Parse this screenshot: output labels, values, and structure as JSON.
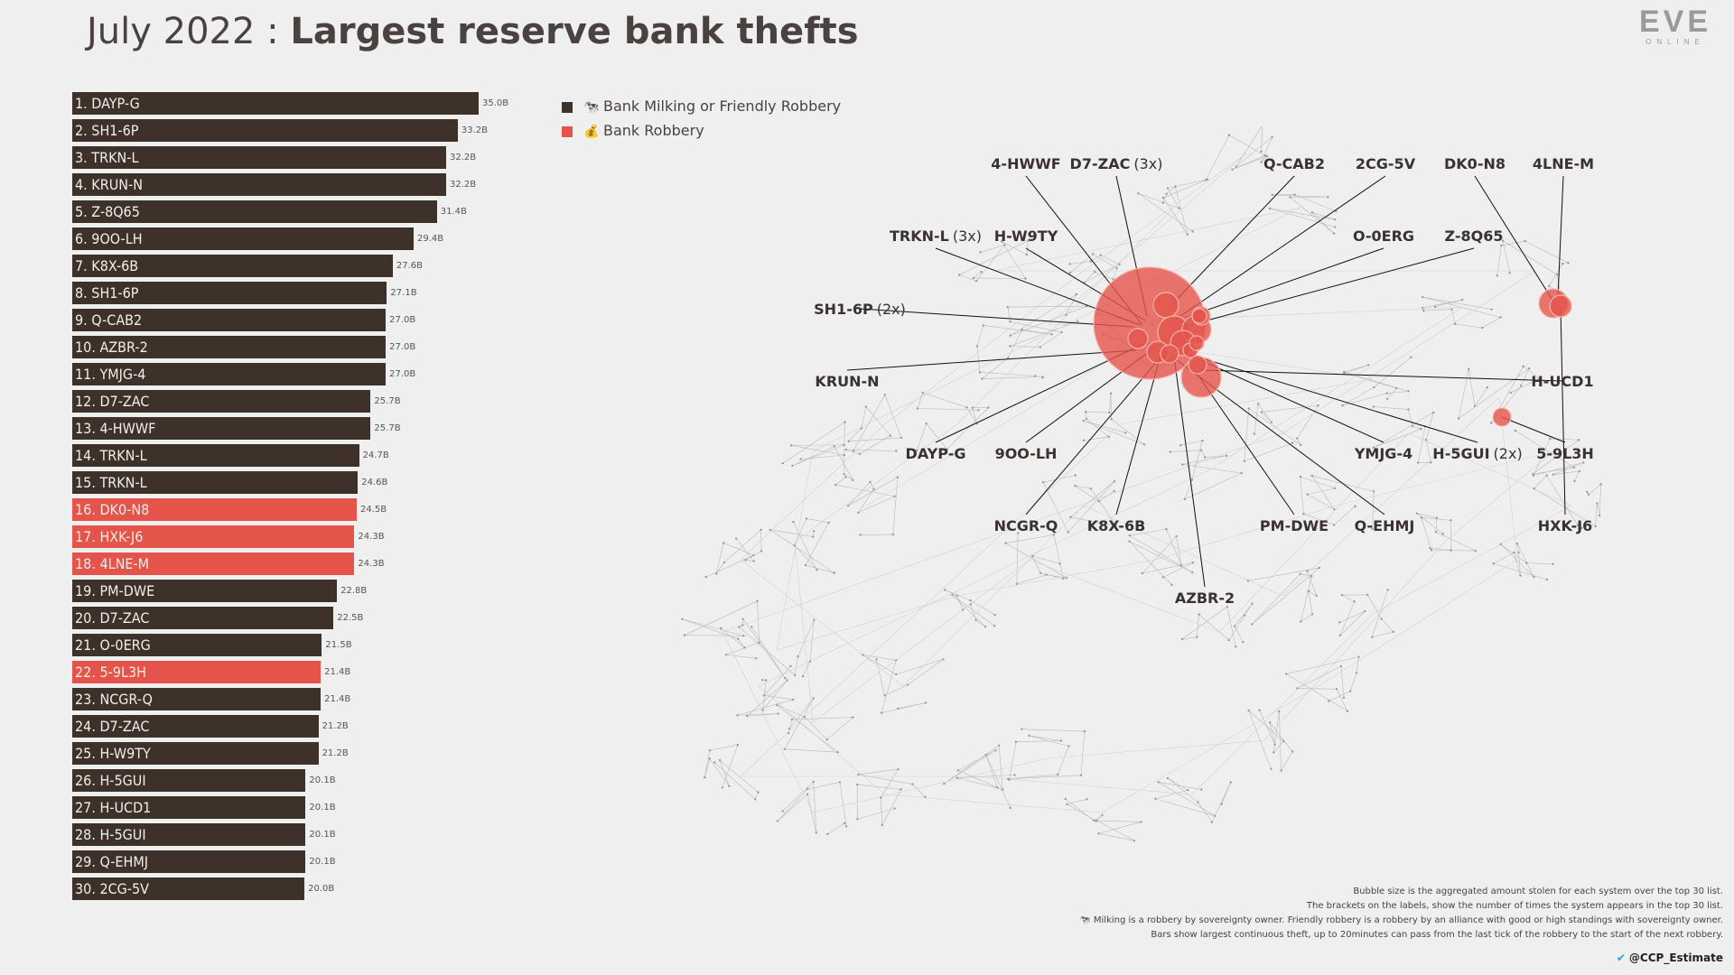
{
  "title": {
    "light": "July 2022 : ",
    "bold": "Largest reserve bank thefts"
  },
  "logo": {
    "main": "EVE",
    "sub": "ONLINE"
  },
  "legend": [
    {
      "icon": "cow-icon",
      "glyph": "🐄",
      "label": "Bank Milking or Friendly Robbery",
      "color": "#3d3129"
    },
    {
      "icon": "money-bag-icon",
      "glyph": "💰",
      "label": "Bank Robbery",
      "color": "#e5544b"
    }
  ],
  "colors": {
    "milking": "#3d3129",
    "robbery": "#e5544b",
    "bubble": "#e5544b"
  },
  "chart_data": [
    {
      "type": "bar",
      "orientation": "horizontal",
      "unit": "B",
      "categories": [
        "1. DAYP-G",
        "2. SH1-6P",
        "3. TRKN-L",
        "4. KRUN-N",
        "5. Z-8Q65",
        "6. 9OO-LH",
        "7. K8X-6B",
        "8. SH1-6P",
        "9. Q-CAB2",
        "10. AZBR-2",
        "11. YMJG-4",
        "12. D7-ZAC",
        "13. 4-HWWF",
        "14. TRKN-L",
        "15. TRKN-L",
        "16. DK0-N8",
        "17. HXK-J6",
        "18. 4LNE-M",
        "19. PM-DWE",
        "20. D7-ZAC",
        "21. O-0ERG",
        "22. 5-9L3H",
        "23. NCGR-Q",
        "24. D7-ZAC",
        "25. H-W9TY",
        "26. H-5GUI",
        "27. H-UCD1",
        "28. H-5GUI",
        "29. Q-EHMJ",
        "30. 2CG-5V"
      ],
      "values": [
        35.0,
        33.2,
        32.2,
        32.2,
        31.4,
        29.4,
        27.6,
        27.1,
        27.0,
        27.0,
        27.0,
        25.7,
        25.7,
        24.7,
        24.6,
        24.5,
        24.3,
        24.3,
        22.8,
        22.5,
        21.5,
        21.4,
        21.4,
        21.2,
        21.2,
        20.1,
        20.1,
        20.1,
        20.1,
        20.0
      ],
      "value_labels": [
        "35.0B",
        "33.2B",
        "32.2B",
        "32.2B",
        "31.4B",
        "29.4B",
        "27.6B",
        "27.1B",
        "27.0B",
        "27.0B",
        "27.0B",
        "25.7B",
        "25.7B",
        "24.7B",
        "24.6B",
        "24.5B",
        "24.3B",
        "24.3B",
        "22.8B",
        "22.5B",
        "21.5B",
        "21.4B",
        "21.4B",
        "21.2B",
        "21.2B",
        "20.1B",
        "20.1B",
        "20.1B",
        "20.1B",
        "20.0B"
      ],
      "kind": [
        "milking",
        "milking",
        "milking",
        "milking",
        "milking",
        "milking",
        "milking",
        "milking",
        "milking",
        "milking",
        "milking",
        "milking",
        "milking",
        "milking",
        "milking",
        "robbery",
        "robbery",
        "robbery",
        "milking",
        "milking",
        "milking",
        "robbery",
        "milking",
        "milking",
        "milking",
        "milking",
        "milking",
        "milking",
        "milking",
        "milking"
      ]
    },
    {
      "type": "scatter",
      "labels": [
        {
          "name": "4-HWWF",
          "count": ""
        },
        {
          "name": "D7-ZAC",
          "count": "(3x)"
        },
        {
          "name": "Q-CAB2",
          "count": ""
        },
        {
          "name": "2CG-5V",
          "count": ""
        },
        {
          "name": "DK0-N8",
          "count": ""
        },
        {
          "name": "4LNE-M",
          "count": ""
        },
        {
          "name": "TRKN-L",
          "count": "(3x)"
        },
        {
          "name": "H-W9TY",
          "count": ""
        },
        {
          "name": "O-0ERG",
          "count": ""
        },
        {
          "name": "Z-8Q65",
          "count": ""
        },
        {
          "name": "SH1-6P",
          "count": "(2x)"
        },
        {
          "name": "KRUN-N",
          "count": ""
        },
        {
          "name": "H-UCD1",
          "count": ""
        },
        {
          "name": "DAYP-G",
          "count": ""
        },
        {
          "name": "9OO-LH",
          "count": ""
        },
        {
          "name": "YMJG-4",
          "count": ""
        },
        {
          "name": "H-5GUI",
          "count": "(2x)"
        },
        {
          "name": "5-9L3H",
          "count": ""
        },
        {
          "name": "NCGR-Q",
          "count": ""
        },
        {
          "name": "K8X-6B",
          "count": ""
        },
        {
          "name": "PM-DWE",
          "count": ""
        },
        {
          "name": "Q-EHMJ",
          "count": ""
        },
        {
          "name": "HXK-J6",
          "count": ""
        },
        {
          "name": "AZBR-2",
          "count": ""
        }
      ]
    }
  ],
  "footnotes": [
    "Bubble size is the aggregated amount stolen for each system over the top 30 list.",
    "The brackets on the labels, show the number of times the system appears in the top 30 list.",
    "🐄 Milking is a robbery by sovereignty owner. Friendly robbery is a robbery by an alliance with good or high standings with sovereignty owner.",
    "Bars show largest continuous theft, up to 20minutes can pass from the last tick of the robbery to the start of the next robbery."
  ],
  "handle": "@CCP_Estimate"
}
